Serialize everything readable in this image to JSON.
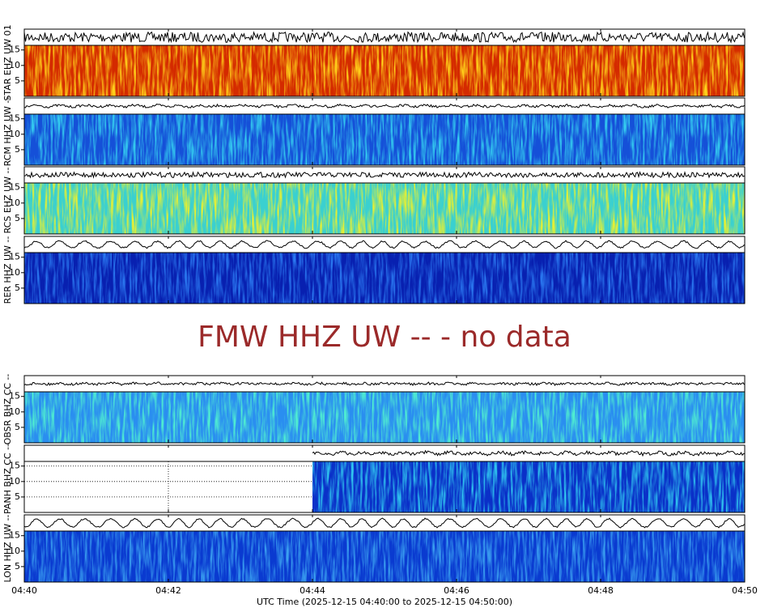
{
  "chart_data": {
    "type": "spectrogram",
    "xlim": [
      "04:40",
      "04:50"
    ],
    "xticks": [
      "04:40",
      "04:42",
      "04:44",
      "04:46",
      "04:48",
      "04:50"
    ],
    "xlabel": "UTC Time (2025-12-15 04:40:00 to 2025-12-15 04:50:00)",
    "ylim": [
      0,
      16.5
    ],
    "yticks": [
      5,
      10,
      15
    ],
    "panels": [
      {
        "name": "STAR EHZ UW 01",
        "colors": [
          "#d42a00",
          "#ffd21a"
        ]
      },
      {
        "name": "RCM HHZ UW --",
        "colors": [
          "#1550d8",
          "#35d0f0"
        ]
      },
      {
        "name": "RCS EHZ UW --",
        "colors": [
          "#3ad0d0",
          "#e8f030"
        ]
      },
      {
        "name": "RER HHZ UW --",
        "colors": [
          "#0820b0",
          "#2a78f0"
        ]
      },
      {
        "name": "FMW HHZ UW -- - no data",
        "no_data": true
      },
      {
        "name": "OBSR BHZ CC --",
        "colors": [
          "#2a8ef0",
          "#50f0d0"
        ]
      },
      {
        "name": "PANH BHZ CC --",
        "colors": [
          "#0a30c8",
          "#30c8f0"
        ],
        "data_start": "04:44"
      },
      {
        "name": "LON HHZ UW --",
        "colors": [
          "#0a3ad0",
          "#3aa0f0"
        ]
      }
    ]
  }
}
